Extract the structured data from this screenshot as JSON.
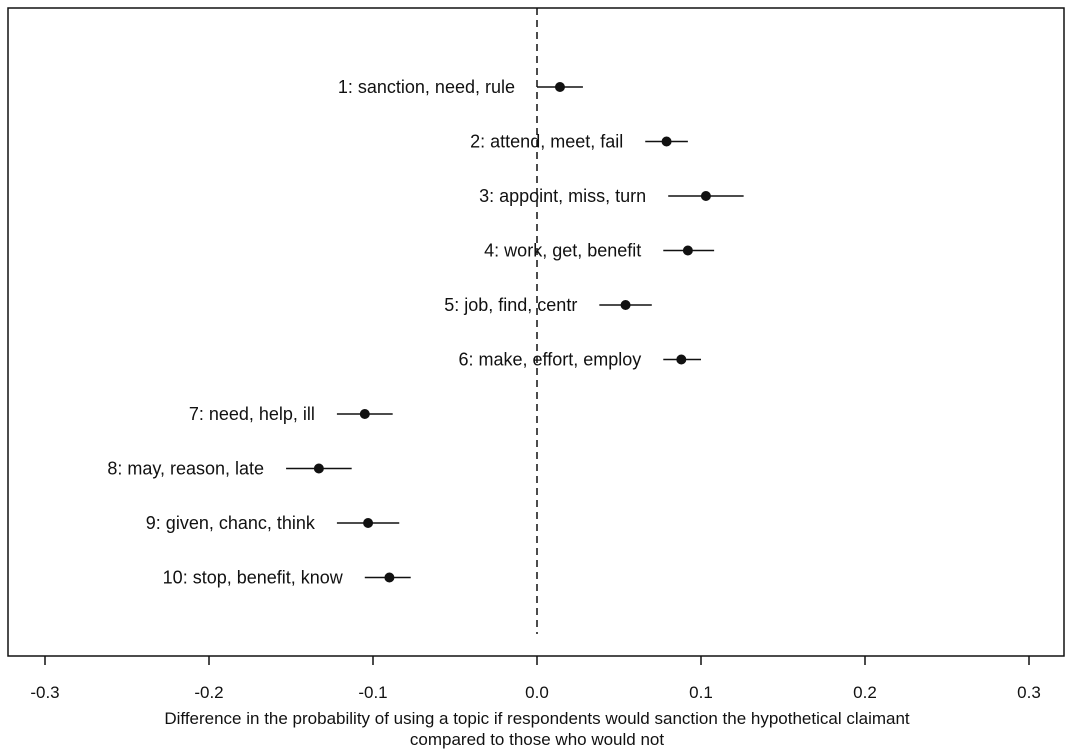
{
  "chart_data": {
    "type": "scatter",
    "subtype": "coefficient-plot-with-intervals",
    "title": "",
    "xlabel": "Difference in the probability of using a topic if respondents would sanction the hypothetical claimant",
    "xlabel_line2": "compared to those who would not",
    "ylabel": "",
    "xlim": [
      -0.3,
      0.3
    ],
    "xticks": [
      -0.3,
      -0.2,
      -0.1,
      0.0,
      0.1,
      0.2,
      0.3
    ],
    "xtick_labels": [
      "-0.3",
      "-0.2",
      "-0.1",
      "0.0",
      "0.1",
      "0.2",
      "0.3"
    ],
    "reference_line": 0.0,
    "reference_line_style": "dashed",
    "grid": false,
    "points": [
      {
        "label": "1: sanction, need, rule",
        "estimate": 0.014,
        "lower": 0.0,
        "upper": 0.028
      },
      {
        "label": "2: attend, meet, fail",
        "estimate": 0.079,
        "lower": 0.066,
        "upper": 0.092
      },
      {
        "label": "3: appoint, miss, turn",
        "estimate": 0.103,
        "lower": 0.08,
        "upper": 0.126
      },
      {
        "label": "4: work, get, benefit",
        "estimate": 0.092,
        "lower": 0.077,
        "upper": 0.108
      },
      {
        "label": "5: job, find, centr",
        "estimate": 0.054,
        "lower": 0.038,
        "upper": 0.07
      },
      {
        "label": "6: make, effort, employ",
        "estimate": 0.088,
        "lower": 0.077,
        "upper": 0.1
      },
      {
        "label": "7: need, help, ill",
        "estimate": -0.105,
        "lower": -0.122,
        "upper": -0.088
      },
      {
        "label": "8: may, reason, late",
        "estimate": -0.133,
        "lower": -0.153,
        "upper": -0.113
      },
      {
        "label": "9: given, chanc, think",
        "estimate": -0.103,
        "lower": -0.122,
        "upper": -0.084
      },
      {
        "label": "10: stop, benefit, know",
        "estimate": -0.09,
        "lower": -0.105,
        "upper": -0.077
      }
    ]
  },
  "colors": {
    "marks": "#111111",
    "background": "#ffffff"
  }
}
